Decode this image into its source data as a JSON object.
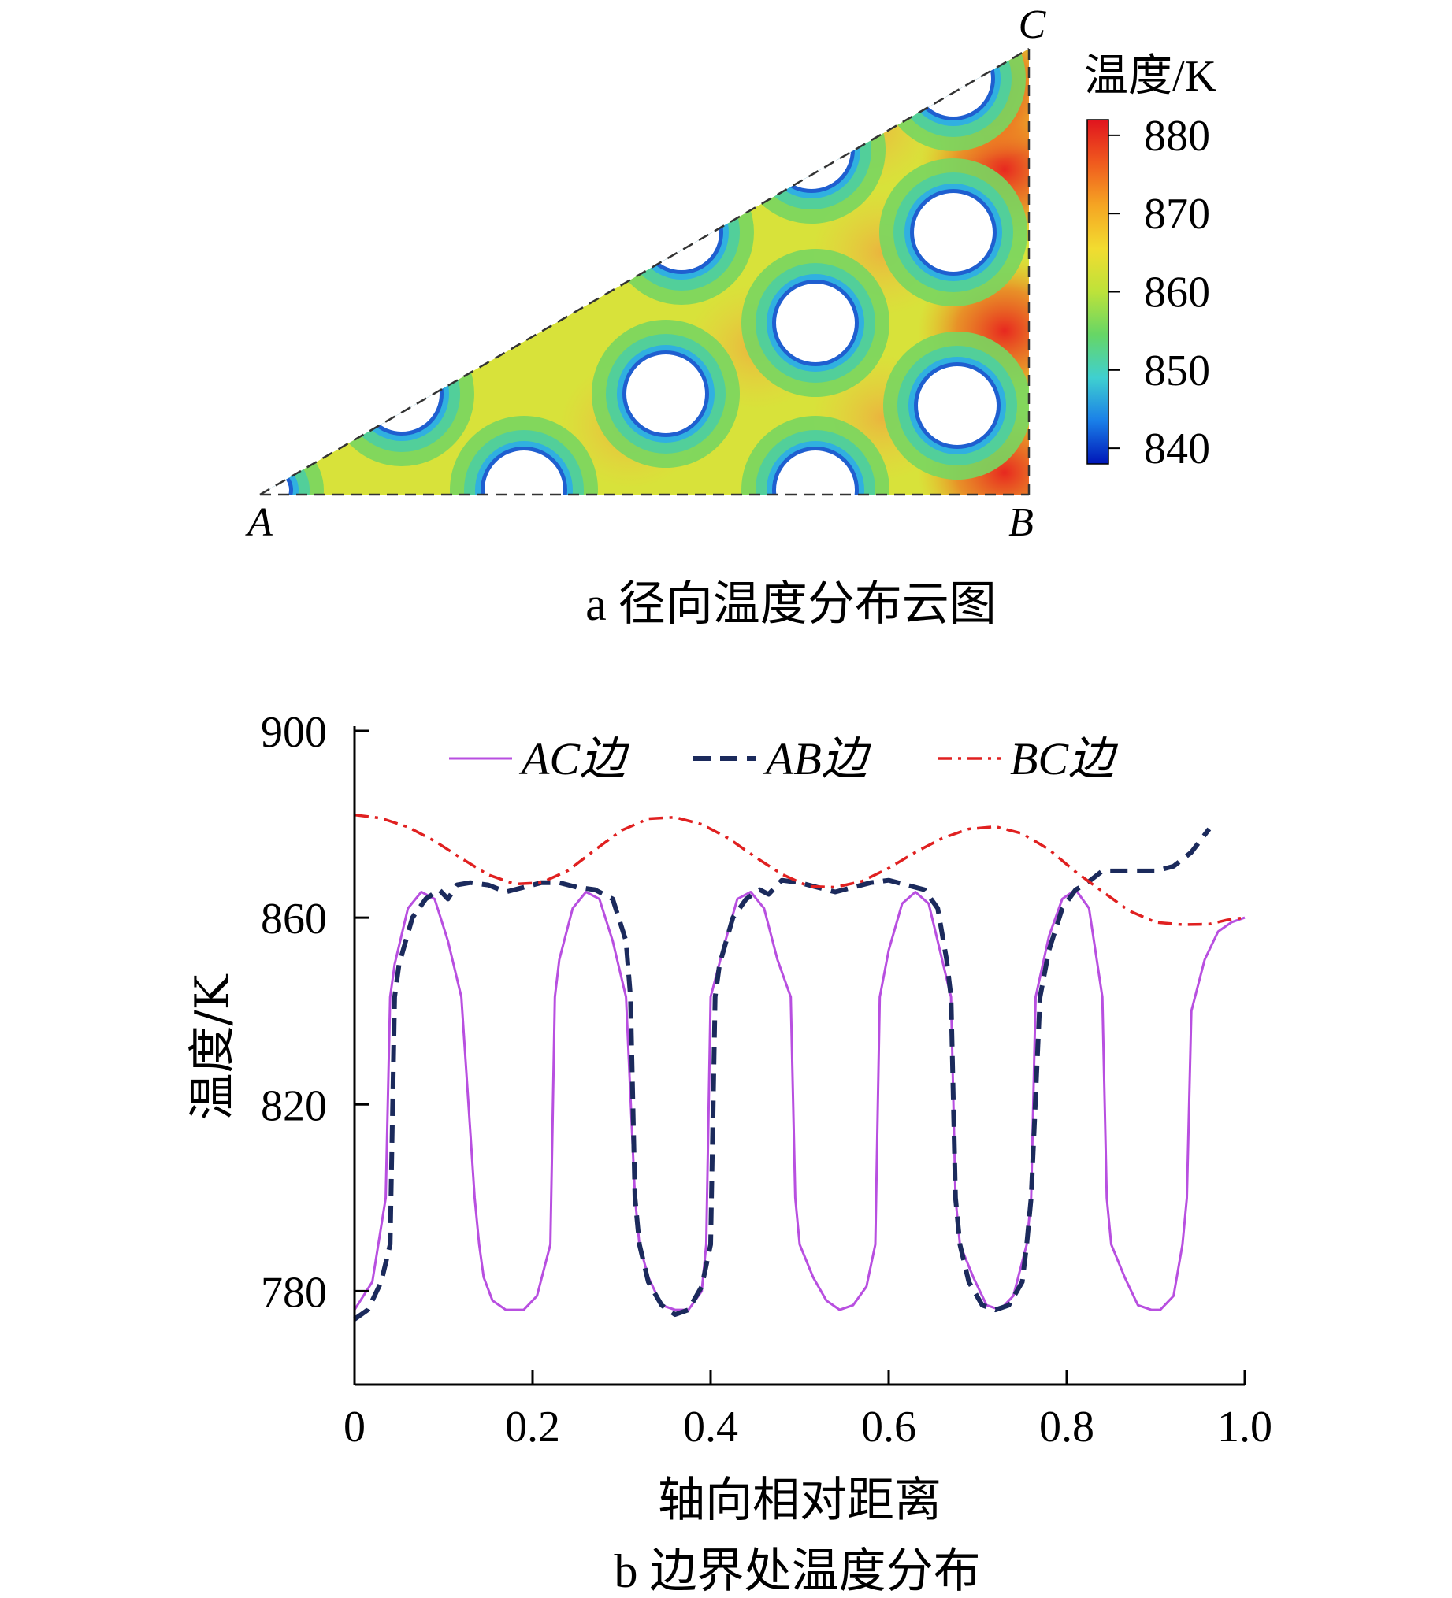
{
  "chart_data": [
    {
      "type": "heatmap",
      "panel_caption": "a  径向温度分布云图",
      "vertex_labels": [
        "A",
        "B",
        "C"
      ],
      "colorbar": {
        "title": "温度/K",
        "ticks": [
          880,
          870,
          860,
          850,
          840
        ],
        "range": [
          838,
          882
        ],
        "colormap": [
          "#0016b8",
          "#1a7fe8",
          "#3fd0d0",
          "#66d666",
          "#bde23a",
          "#f2dc30",
          "#f5a623",
          "#f05a1e",
          "#e0141e"
        ]
      },
      "holes_left_edge_temperature": 840,
      "holes_full": [
        {
          "row": "bottom",
          "column": 2
        },
        {
          "row": "bottom",
          "column": 4
        }
      ]
    },
    {
      "type": "line",
      "panel_caption": "b  边界处温度分布",
      "xlabel": "轴向相对距离",
      "ylabel": "温度/K",
      "xlim": [
        0,
        1.0
      ],
      "ylim": [
        760,
        900
      ],
      "xticks": [
        "0",
        "0.2",
        "0.4",
        "0.6",
        "0.8",
        "1.0"
      ],
      "yticks": [
        "780",
        "820",
        "860",
        "900"
      ],
      "series": [
        {
          "name": "AC边",
          "color": "#b84fe0",
          "style": "solid",
          "x": [
            0.0,
            0.02,
            0.035,
            0.04,
            0.045,
            0.06,
            0.075,
            0.09,
            0.105,
            0.12,
            0.135,
            0.14,
            0.145,
            0.155,
            0.17,
            0.18,
            0.19,
            0.205,
            0.22,
            0.225,
            0.23,
            0.245,
            0.26,
            0.275,
            0.29,
            0.305,
            0.315,
            0.32,
            0.33,
            0.345,
            0.36,
            0.375,
            0.39,
            0.395,
            0.4,
            0.415,
            0.43,
            0.445,
            0.46,
            0.475,
            0.49,
            0.495,
            0.5,
            0.515,
            0.53,
            0.545,
            0.56,
            0.575,
            0.585,
            0.59,
            0.6,
            0.615,
            0.63,
            0.645,
            0.66,
            0.67,
            0.675,
            0.68,
            0.695,
            0.71,
            0.725,
            0.74,
            0.755,
            0.76,
            0.765,
            0.78,
            0.795,
            0.81,
            0.825,
            0.84,
            0.845,
            0.85,
            0.865,
            0.88,
            0.895,
            0.905,
            0.92,
            0.93,
            0.935,
            0.94,
            0.955,
            0.97,
            0.985,
            1.0
          ],
          "values": [
            776,
            782,
            800,
            843,
            850,
            862,
            865.5,
            864,
            855,
            843,
            800,
            790,
            783,
            778,
            776,
            776,
            776,
            779,
            790,
            843,
            851,
            862,
            865.5,
            864,
            855,
            843,
            800,
            790,
            783,
            777,
            776,
            776,
            780,
            790,
            843,
            854,
            864,
            865.5,
            862,
            851,
            843,
            800,
            790,
            783,
            778,
            776,
            777,
            781,
            790,
            843,
            853,
            863,
            865.5,
            863,
            851,
            843,
            800,
            790,
            783,
            777,
            776,
            779,
            790,
            800,
            843,
            856,
            864,
            866,
            862,
            843,
            800,
            790,
            783,
            777,
            776,
            776,
            779,
            790,
            800,
            840,
            851,
            857,
            859,
            860
          ]
        },
        {
          "name": "AB边",
          "color": "#1b2a5c",
          "style": "dashed",
          "x": [
            0.0,
            0.015,
            0.03,
            0.04,
            0.045,
            0.05,
            0.065,
            0.08,
            0.095,
            0.105,
            0.115,
            0.13,
            0.15,
            0.17,
            0.19,
            0.21,
            0.23,
            0.25,
            0.27,
            0.29,
            0.305,
            0.31,
            0.315,
            0.32,
            0.33,
            0.345,
            0.36,
            0.375,
            0.39,
            0.4,
            0.405,
            0.41,
            0.425,
            0.44,
            0.455,
            0.465,
            0.48,
            0.5,
            0.52,
            0.54,
            0.56,
            0.58,
            0.6,
            0.62,
            0.64,
            0.655,
            0.665,
            0.67,
            0.675,
            0.68,
            0.69,
            0.705,
            0.72,
            0.735,
            0.75,
            0.755,
            0.76,
            0.77,
            0.78,
            0.795,
            0.81,
            0.82,
            0.84,
            0.86,
            0.88,
            0.9,
            0.92,
            0.94,
            0.96
          ],
          "values": [
            774,
            776,
            782,
            790,
            843,
            850,
            860,
            864,
            866,
            864,
            867,
            867.5,
            867,
            865.5,
            866.5,
            867.5,
            867.5,
            866.5,
            866,
            864,
            855,
            843,
            800,
            790,
            782,
            777,
            775,
            776,
            781,
            790,
            843,
            850,
            860,
            864,
            866,
            865,
            868,
            867.5,
            866.5,
            865.5,
            866.5,
            867.5,
            868,
            867,
            866,
            862,
            851,
            843,
            800,
            790,
            782,
            777,
            776,
            777,
            782,
            790,
            800,
            843,
            853,
            862,
            866,
            867,
            870,
            870,
            870,
            870,
            871,
            874,
            879
          ]
        },
        {
          "name": "BC边",
          "color": "#e02020",
          "style": "dashdot",
          "x": [
            0.0,
            0.03,
            0.06,
            0.09,
            0.12,
            0.15,
            0.18,
            0.21,
            0.24,
            0.27,
            0.3,
            0.33,
            0.36,
            0.39,
            0.42,
            0.45,
            0.48,
            0.51,
            0.54,
            0.57,
            0.6,
            0.63,
            0.66,
            0.69,
            0.72,
            0.75,
            0.78,
            0.81,
            0.84,
            0.87,
            0.9,
            0.93,
            0.96,
            0.98,
            1.0
          ],
          "values": [
            882,
            881.3,
            879.4,
            876.4,
            872.7,
            869.2,
            867.2,
            867.5,
            870.1,
            874.5,
            878.7,
            881.2,
            881.5,
            880,
            877,
            873,
            869.3,
            866.7,
            866.5,
            867.8,
            870.6,
            874,
            877,
            879,
            879.5,
            878,
            874.6,
            869.8,
            865.6,
            861.5,
            859,
            858.5,
            858.6,
            859.5,
            860
          ]
        }
      ]
    }
  ]
}
